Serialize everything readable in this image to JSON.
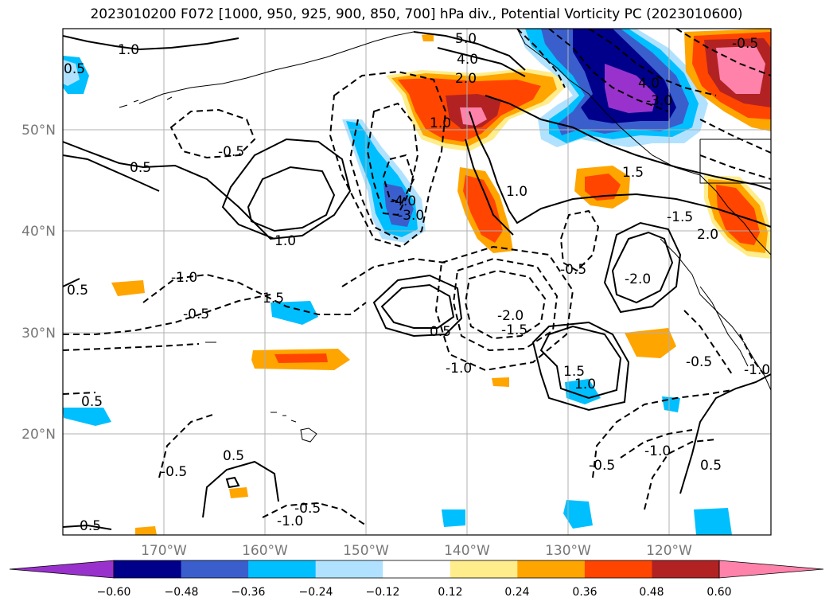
{
  "title": "2023010200 F072 [1000, 950, 925, 900, 850, 700] hPa div., Potential Vorticity PC (2023010600)",
  "lat_labels": [
    "50°N",
    "40°N",
    "30°N",
    "20°N"
  ],
  "lon_labels": [
    "170°W",
    "160°W",
    "150°W",
    "140°W",
    "130°W",
    "120°W"
  ],
  "colorbar": {
    "colors": [
      "#9932cc",
      "#00008b",
      "#3a5fcd",
      "#00bfff",
      "#b0e2ff",
      "#ffffff",
      "#ffec8b",
      "#ffa500",
      "#ff4500",
      "#b22222",
      "#ff82ab"
    ],
    "tick_labels": [
      "−0.60",
      "−0.48",
      "−0.36",
      "−0.24",
      "−0.12",
      "0.12",
      "0.24",
      "0.36",
      "0.48",
      "0.60"
    ]
  },
  "contour_labels": [
    "1.0",
    "0.5",
    "-0.5",
    "1.0",
    "0.5",
    "5.0",
    "4.0",
    "2.0",
    "1.0",
    "-4.0",
    "4.0",
    "-3.0",
    "1.0",
    "-3.0",
    "-1.0",
    "1.5",
    "-0.5",
    "-2.0",
    "-1.5",
    "0.5",
    "1.0",
    "-1.0",
    "0.5",
    "-0.5",
    "1.5",
    "-1.0",
    "-2.0",
    "-0.5",
    "-1.0",
    "-0.5",
    "1.5",
    "-0.5",
    "-1.5",
    "0.5",
    "-0.5",
    "-1.0",
    "0.5",
    "-0.5",
    "0.5",
    "2.0",
    "0.5"
  ],
  "colors": {
    "coast": "#000000",
    "grid": "#b0b0b0"
  }
}
